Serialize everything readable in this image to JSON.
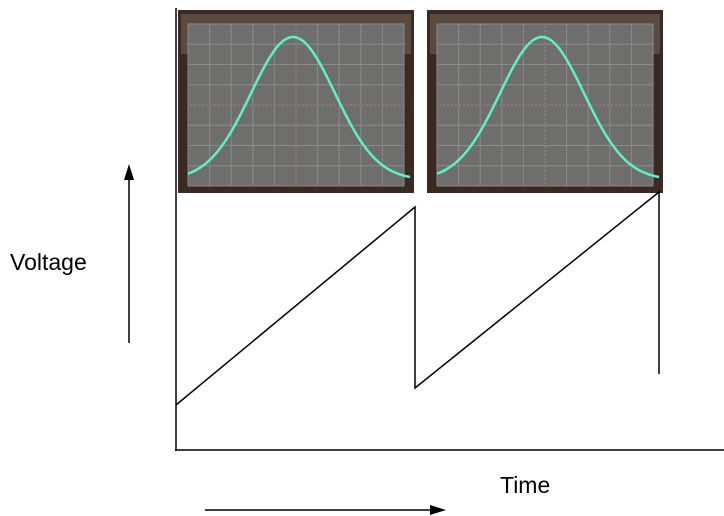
{
  "labels": {
    "y_axis": "Voltage",
    "x_axis": "Time"
  }
}
